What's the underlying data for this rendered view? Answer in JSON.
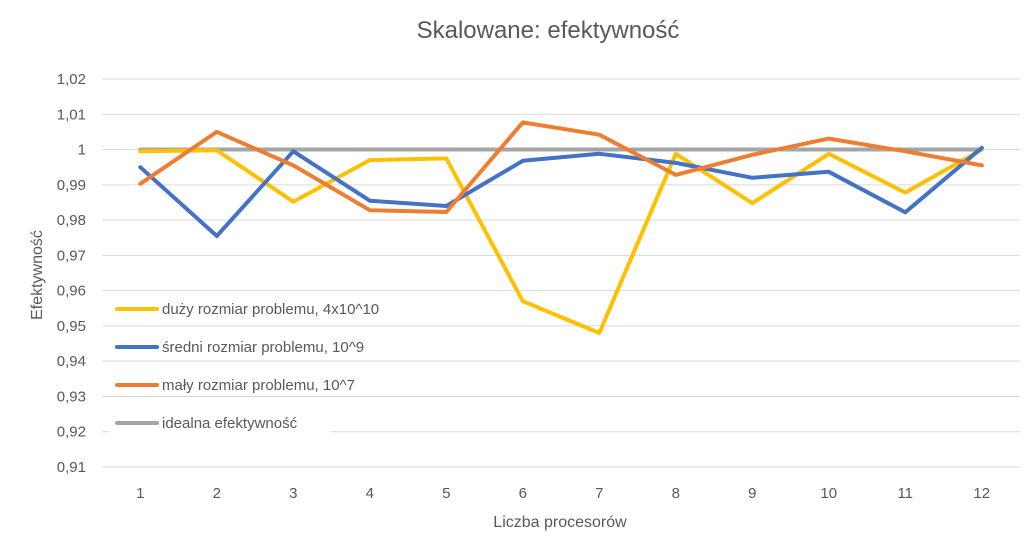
{
  "chart_data": {
    "type": "line",
    "title": "Skalowane: efektywność",
    "xlabel": "Liczba procesorów",
    "ylabel": "Efektywność",
    "categories": [
      "1",
      "2",
      "3",
      "4",
      "5",
      "6",
      "7",
      "8",
      "9",
      "10",
      "11",
      "12"
    ],
    "ylim": [
      0.91,
      1.02
    ],
    "yticks": [
      "0,91",
      "0,92",
      "0,93",
      "0,94",
      "0,95",
      "0,96",
      "0,97",
      "0,98",
      "0,99",
      "1",
      "1,01",
      "1,02"
    ],
    "grid": true,
    "legend_position": "left",
    "series": [
      {
        "name": "duży rozmiar problemu, 4x10^10",
        "color": "#FFC000",
        "values": [
          0.9995,
          0.9998,
          0.9852,
          0.997,
          0.9975,
          0.957,
          0.948,
          0.9988,
          0.9848,
          0.9988,
          0.9878,
          1.0
        ]
      },
      {
        "name": "średni rozmiar problemu, 10^9",
        "color": "#4472C4",
        "values": [
          0.995,
          0.9755,
          0.9995,
          0.9855,
          0.984,
          0.9968,
          0.9988,
          0.9962,
          0.992,
          0.9937,
          0.9822,
          1.0005
        ]
      },
      {
        "name": "mały rozmiar problemu, 10^7",
        "color": "#ED7D31",
        "values": [
          0.9903,
          1.005,
          0.9955,
          0.9828,
          0.9823,
          1.0077,
          1.0042,
          0.9928,
          0.9985,
          1.0031,
          0.9995,
          0.9955
        ]
      },
      {
        "name": "idealna efektywność",
        "color": "#A5A5A5",
        "values": [
          1,
          1,
          1,
          1,
          1,
          1,
          1,
          1,
          1,
          1,
          1,
          1
        ]
      }
    ]
  }
}
